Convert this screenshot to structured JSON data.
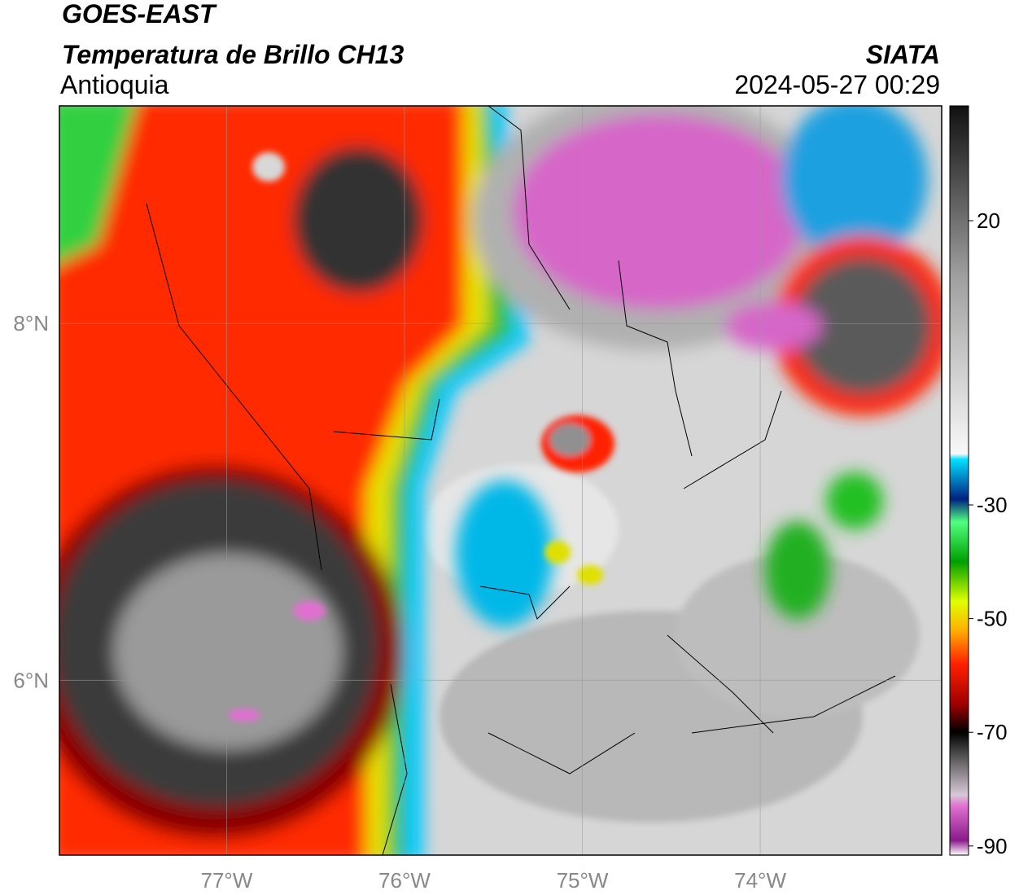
{
  "map": {
    "title": "GOES-EAST",
    "subtitle": "Temperatura de Brillo CH13",
    "source": "SIATA",
    "region": "Antioquia",
    "datetime": "2024-05-27 00:29",
    "lonlim": [
      -77.94,
      -72.98
    ],
    "latlim": [
      5.02,
      9.22
    ],
    "xticks": [
      {
        "value": -77,
        "label": "77°W"
      },
      {
        "value": -76,
        "label": "76°W"
      },
      {
        "value": -75,
        "label": "75°W"
      },
      {
        "value": -74,
        "label": "74°W"
      }
    ],
    "yticks": [
      {
        "value": 8,
        "label": "8°N"
      },
      {
        "value": 6,
        "label": "6°N"
      }
    ],
    "grid": true,
    "colorbar": {
      "clim": [
        -91.6,
        40.2
      ],
      "ticks": [
        20,
        -30,
        -50,
        -70,
        -90
      ],
      "stops": [
        {
          "value": -91.6,
          "color": "#ffffff"
        },
        {
          "value": -89,
          "color": "#8a1a8a"
        },
        {
          "value": -83,
          "color": "#e070d0"
        },
        {
          "value": -81,
          "color": "#d8c8d8"
        },
        {
          "value": -74,
          "color": "#505050"
        },
        {
          "value": -70,
          "color": "#000000"
        },
        {
          "value": -65,
          "color": "#a00000"
        },
        {
          "value": -58,
          "color": "#ff2000"
        },
        {
          "value": -52,
          "color": "#ffb000"
        },
        {
          "value": -47,
          "color": "#e0ff00"
        },
        {
          "value": -40,
          "color": "#00a000"
        },
        {
          "value": -33,
          "color": "#50ff80"
        },
        {
          "value": -29,
          "color": "#002080"
        },
        {
          "value": -22,
          "color": "#00e0ff"
        },
        {
          "value": -21,
          "color": "#f8f8f8"
        },
        {
          "value": 10,
          "color": "#a0a0a0"
        },
        {
          "value": 40.2,
          "color": "#101010"
        }
      ]
    }
  }
}
